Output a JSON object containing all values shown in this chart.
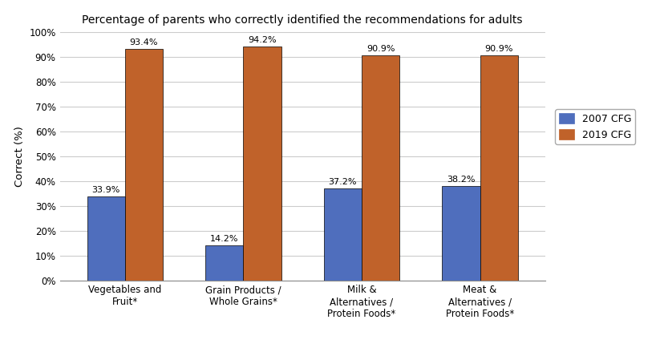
{
  "title": "Percentage of parents who correctly identified the recommendations for adults",
  "categories": [
    "Vegetables and\nFruit*",
    "Grain Products /\nWhole Grains*",
    "Milk &\nAlternatives /\nProtein Foods*",
    "Meat &\nAlternatives /\nProtein Foods*"
  ],
  "series": {
    "2007 CFG": [
      33.9,
      14.2,
      37.2,
      38.2
    ],
    "2019 CFG": [
      93.4,
      94.2,
      90.9,
      90.9
    ]
  },
  "bar_colors": {
    "2007 CFG": "#4F6EBD",
    "2019 CFG": "#C0622A"
  },
  "bar_edge_color": "#000000",
  "bar_edge_width": 0.5,
  "ylabel": "Correct (%)",
  "ylim": [
    0,
    100
  ],
  "yticks": [
    0,
    10,
    20,
    30,
    40,
    50,
    60,
    70,
    80,
    90,
    100
  ],
  "ytick_labels": [
    "0%",
    "10%",
    "20%",
    "30%",
    "40%",
    "50%",
    "60%",
    "70%",
    "80%",
    "90%",
    "100%"
  ],
  "bar_width": 0.32,
  "annotation_fontsize": 8,
  "title_fontsize": 10,
  "axis_label_fontsize": 9.5,
  "tick_fontsize": 8.5,
  "legend_fontsize": 9,
  "background_color": "#FFFFFF",
  "grid_color": "#CCCCCC"
}
